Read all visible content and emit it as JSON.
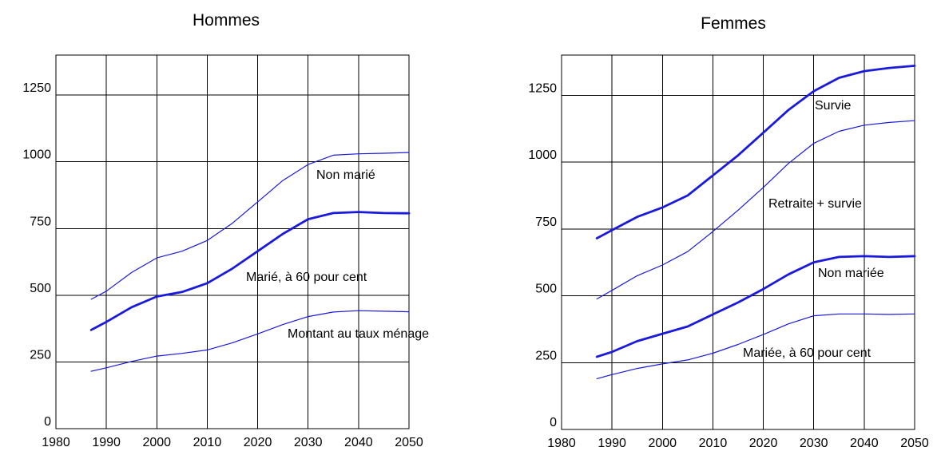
{
  "chart_data": [
    {
      "type": "line",
      "title": "Hommes",
      "xlabel": "",
      "ylabel": "",
      "xlim": [
        1980,
        2050
      ],
      "ylim": [
        0,
        1400
      ],
      "x_ticks": [
        "1980",
        "1990",
        "2000",
        "2010",
        "2020",
        "2030",
        "2040",
        "2050"
      ],
      "y_ticks": [
        "0",
        "250",
        "500",
        "750",
        "1000",
        "1250"
      ],
      "grid": true,
      "line_color": "#1a1adc",
      "series": [
        {
          "name": "Non marié",
          "weight": "thin",
          "x": [
            1987,
            1990,
            1995,
            2000,
            2005,
            2010,
            2015,
            2020,
            2025,
            2030,
            2035,
            2040,
            2045,
            2050
          ],
          "y": [
            485,
            515,
            585,
            640,
            665,
            705,
            770,
            850,
            930,
            990,
            1025,
            1030,
            1032,
            1035
          ]
        },
        {
          "name": "Marié, à 60 pour cent",
          "weight": "thick",
          "x": [
            1987,
            1990,
            1995,
            2000,
            2005,
            2010,
            2015,
            2020,
            2025,
            2030,
            2035,
            2040,
            2045,
            2050
          ],
          "y": [
            370,
            400,
            455,
            495,
            512,
            545,
            600,
            665,
            730,
            785,
            808,
            812,
            808,
            807
          ]
        },
        {
          "name": "Montant au taux ménage",
          "weight": "thin",
          "x": [
            1987,
            1990,
            1995,
            2000,
            2005,
            2010,
            2015,
            2020,
            2025,
            2030,
            2035,
            2040,
            2045,
            2050
          ],
          "y": [
            215,
            228,
            252,
            272,
            282,
            295,
            322,
            355,
            390,
            420,
            437,
            442,
            440,
            438
          ]
        }
      ]
    },
    {
      "type": "line",
      "title": "Femmes",
      "xlabel": "",
      "ylabel": "",
      "xlim": [
        1980,
        2050
      ],
      "ylim": [
        0,
        1400
      ],
      "x_ticks": [
        "1980",
        "1990",
        "2000",
        "2010",
        "2020",
        "2030",
        "2040",
        "2050"
      ],
      "y_ticks": [
        "0",
        "250",
        "500",
        "750",
        "1000",
        "1250"
      ],
      "grid": true,
      "line_color": "#1a1adc",
      "series": [
        {
          "name": "Survie",
          "weight": "thick",
          "x": [
            1987,
            1990,
            1995,
            2000,
            2005,
            2010,
            2015,
            2020,
            2025,
            2030,
            2035,
            2040,
            2045,
            2050
          ],
          "y": [
            715,
            745,
            795,
            830,
            875,
            950,
            1025,
            1110,
            1195,
            1265,
            1315,
            1340,
            1352,
            1360
          ]
        },
        {
          "name": "Retraite + survie",
          "weight": "thin",
          "x": [
            1987,
            1990,
            1995,
            2000,
            2005,
            2010,
            2015,
            2020,
            2025,
            2030,
            2035,
            2040,
            2045,
            2050
          ],
          "y": [
            488,
            520,
            575,
            615,
            665,
            740,
            820,
            905,
            995,
            1070,
            1115,
            1138,
            1148,
            1155
          ]
        },
        {
          "name": "Non mariée",
          "weight": "thick",
          "x": [
            1987,
            1990,
            1995,
            2000,
            2005,
            2010,
            2015,
            2020,
            2025,
            2030,
            2035,
            2040,
            2045,
            2050
          ],
          "y": [
            272,
            290,
            330,
            358,
            385,
            430,
            475,
            525,
            580,
            625,
            645,
            648,
            645,
            648
          ]
        },
        {
          "name": "Mariée, à 60 pour cent",
          "weight": "thin",
          "x": [
            1987,
            1990,
            1995,
            2000,
            2005,
            2010,
            2015,
            2020,
            2025,
            2030,
            2035,
            2040,
            2045,
            2050
          ],
          "y": [
            190,
            205,
            228,
            245,
            260,
            285,
            318,
            355,
            395,
            425,
            432,
            432,
            430,
            432
          ]
        }
      ]
    }
  ]
}
